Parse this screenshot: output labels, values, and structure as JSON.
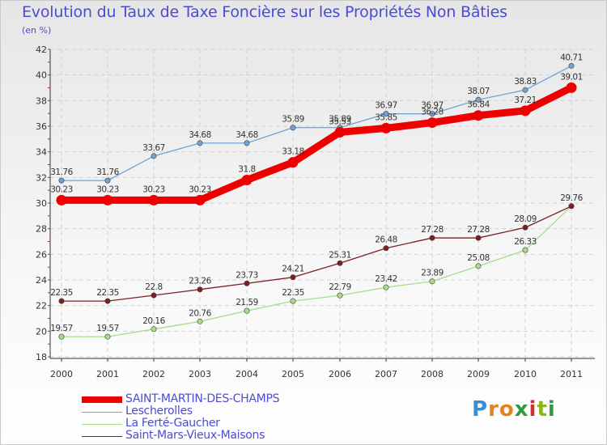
{
  "title": "Evolution du Taux de Taxe Foncière sur les Propriétés Non Bâties",
  "unit": "(en %)",
  "logo": {
    "letters": [
      "P",
      "r",
      "o",
      "x",
      "i",
      "t",
      "i"
    ],
    "colors": [
      "#3b8fd0",
      "#e8821e",
      "#e8821e",
      "#2f9a3f",
      "#d0312d",
      "#8ab61c",
      "#2f9a3f"
    ]
  },
  "chart_data": {
    "type": "line",
    "x": [
      "2000",
      "2001",
      "2002",
      "2003",
      "2004",
      "2005",
      "2006",
      "2007",
      "2008",
      "2009",
      "2010",
      "2011"
    ],
    "ylim": [
      18,
      42
    ],
    "yticks": [
      18,
      20,
      22,
      24,
      26,
      28,
      30,
      32,
      34,
      36,
      38,
      40,
      42
    ],
    "grid": true,
    "legend_position": "bottom-left",
    "series": [
      {
        "name": "SAINT-MARTIN-DES-CHAMPS",
        "color": "#ee0000",
        "values": [
          30.23,
          30.23,
          30.23,
          30.23,
          31.8,
          33.18,
          35.53,
          35.85,
          36.28,
          36.84,
          37.21,
          39.01
        ],
        "labels": [
          "30.23",
          "30.23",
          "30.23",
          "30.23",
          "31.8",
          "33.18",
          "35.53",
          "35.85",
          "36.28",
          "36.84",
          "37.21",
          "39.01"
        ]
      },
      {
        "name": "Lescherolles",
        "color": "#6fa3d4",
        "values": [
          31.76,
          31.76,
          33.67,
          34.68,
          34.68,
          35.89,
          35.89,
          36.97,
          36.97,
          38.07,
          38.83,
          40.71
        ],
        "labels": [
          "31.76",
          "31.76",
          "33.67",
          "34.68",
          "34.68",
          "35.89",
          "35.89",
          "36.97",
          "36.97",
          "38.07",
          "38.83",
          "40.71"
        ]
      },
      {
        "name": "La Ferté-Gaucher",
        "color": "#a8dc8a",
        "values": [
          19.57,
          19.57,
          20.16,
          20.76,
          21.59,
          22.35,
          22.79,
          23.42,
          23.89,
          25.08,
          26.33,
          29.76
        ],
        "labels": [
          "19.57",
          "19.57",
          "20.16",
          "20.76",
          "21.59",
          "22.35",
          "22.79",
          "23.42",
          "23.89",
          "25.08",
          "26.33",
          ""
        ]
      },
      {
        "name": "Saint-Mars-Vieux-Maisons",
        "color": "#7a1f22",
        "values": [
          22.35,
          22.35,
          22.8,
          23.26,
          23.73,
          24.21,
          25.31,
          26.48,
          27.28,
          27.28,
          28.09,
          29.76
        ],
        "labels": [
          "22.35",
          "22.35",
          "22.8",
          "23.26",
          "23.73",
          "24.21",
          "25.31",
          "26.48",
          "27.28",
          "27.28",
          "28.09",
          "29.76"
        ]
      }
    ]
  }
}
